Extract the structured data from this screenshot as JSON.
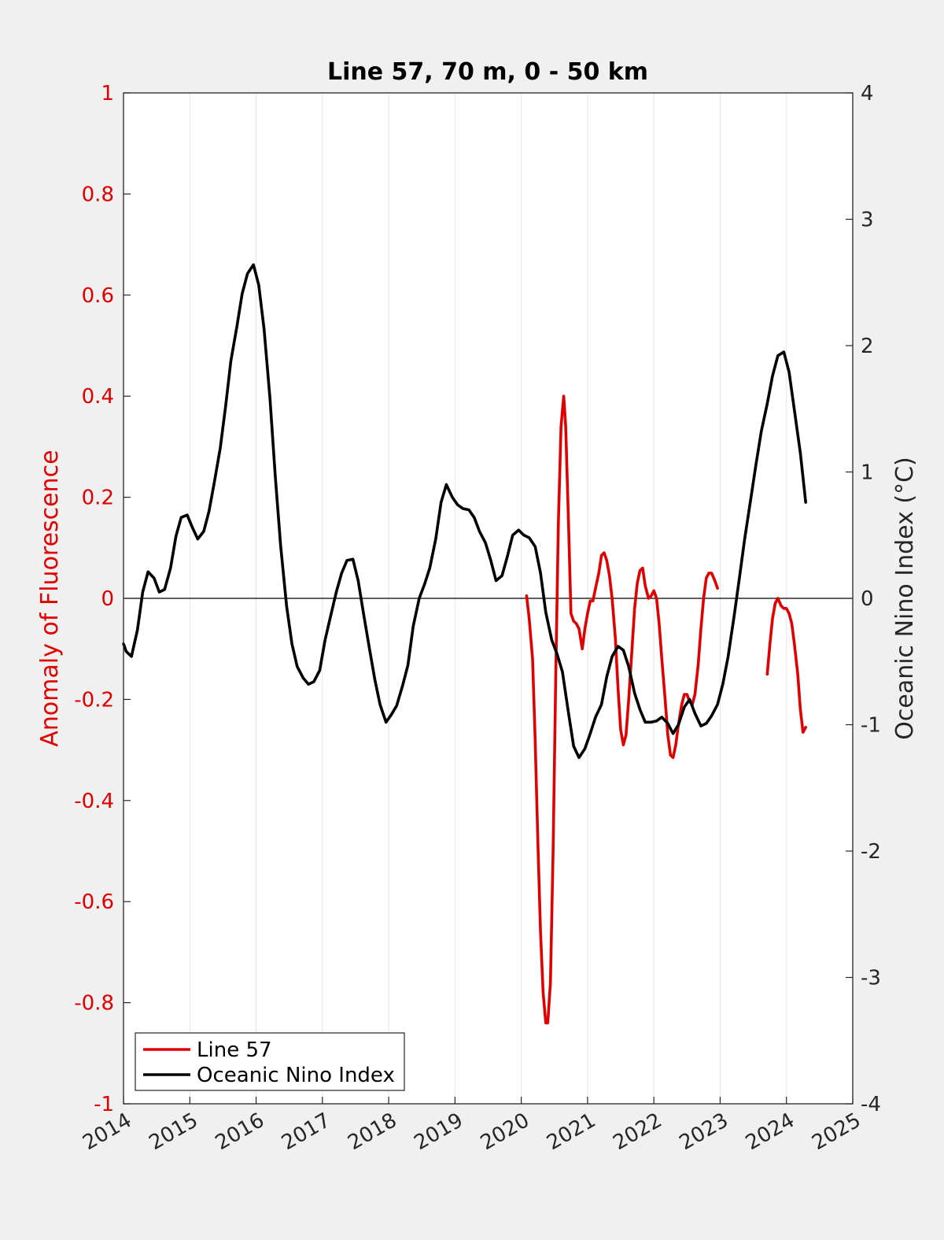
{
  "chart_data": {
    "type": "line",
    "title": "Line 57, 70 m, 0 - 50 km",
    "xlabel": "",
    "ylabel_left": "Anomaly of Fluorescence",
    "ylabel_right": "Oceanic Nino Index (°C)",
    "xlim": [
      2014,
      2025
    ],
    "ylim_left": [
      -1,
      1
    ],
    "ylim_right": [
      -4,
      4
    ],
    "x_ticks": [
      "2014",
      "2015",
      "2016",
      "2017",
      "2018",
      "2019",
      "2020",
      "2021",
      "2022",
      "2023",
      "2024",
      "2025"
    ],
    "y_left_ticks": [
      "-1",
      "-0.8",
      "-0.6",
      "-0.4",
      "-0.2",
      "0",
      "0.2",
      "0.4",
      "0.6",
      "0.8",
      "1"
    ],
    "y_right_ticks": [
      "-4",
      "-3",
      "-2",
      "-1",
      "0",
      "1",
      "2",
      "3",
      "4"
    ],
    "grid": "vertical",
    "zero_line": true,
    "legend": {
      "position": "bottom-left",
      "entries": [
        "Line 57",
        "Oceanic Nino Index"
      ]
    },
    "colors": {
      "line57": "#e00000",
      "oni": "#000000",
      "left_axis": "#e00000"
    },
    "series": [
      {
        "name": "Line 57",
        "axis": "left",
        "segments": [
          [
            [
              2020.08,
              0.005
            ],
            [
              2020.12,
              -0.04
            ],
            [
              2020.17,
              -0.12
            ],
            [
              2020.21,
              -0.28
            ],
            [
              2020.25,
              -0.48
            ],
            [
              2020.29,
              -0.66
            ],
            [
              2020.33,
              -0.78
            ],
            [
              2020.37,
              -0.84
            ],
            [
              2020.4,
              -0.84
            ],
            [
              2020.44,
              -0.76
            ],
            [
              2020.48,
              -0.5
            ],
            [
              2020.52,
              -0.15
            ],
            [
              2020.56,
              0.15
            ],
            [
              2020.6,
              0.34
            ],
            [
              2020.64,
              0.4
            ],
            [
              2020.67,
              0.34
            ],
            [
              2020.71,
              0.16
            ],
            [
              2020.75,
              -0.03
            ],
            [
              2020.79,
              -0.045
            ],
            [
              2020.83,
              -0.05
            ],
            [
              2020.87,
              -0.06
            ],
            [
              2020.92,
              -0.1
            ],
            [
              2020.96,
              -0.06
            ],
            [
              2021.0,
              -0.03
            ],
            [
              2021.04,
              -0.005
            ],
            [
              2021.08,
              -0.005
            ],
            [
              2021.12,
              0.02
            ],
            [
              2021.17,
              0.05
            ],
            [
              2021.21,
              0.085
            ],
            [
              2021.25,
              0.09
            ],
            [
              2021.29,
              0.075
            ],
            [
              2021.33,
              0.045
            ],
            [
              2021.37,
              0.0
            ],
            [
              2021.42,
              -0.08
            ],
            [
              2021.46,
              -0.18
            ],
            [
              2021.5,
              -0.26
            ],
            [
              2021.54,
              -0.29
            ],
            [
              2021.58,
              -0.27
            ],
            [
              2021.62,
              -0.2
            ],
            [
              2021.67,
              -0.1
            ],
            [
              2021.71,
              -0.02
            ],
            [
              2021.75,
              0.03
            ],
            [
              2021.79,
              0.055
            ],
            [
              2021.83,
              0.06
            ],
            [
              2021.87,
              0.025
            ],
            [
              2021.92,
              0.0
            ],
            [
              2021.96,
              0.005
            ],
            [
              2022.0,
              0.015
            ],
            [
              2022.04,
              0.0
            ],
            [
              2022.08,
              -0.05
            ],
            [
              2022.12,
              -0.12
            ],
            [
              2022.17,
              -0.2
            ],
            [
              2022.21,
              -0.27
            ],
            [
              2022.25,
              -0.31
            ],
            [
              2022.29,
              -0.315
            ],
            [
              2022.33,
              -0.29
            ],
            [
              2022.37,
              -0.25
            ],
            [
              2022.42,
              -0.21
            ],
            [
              2022.46,
              -0.19
            ],
            [
              2022.5,
              -0.19
            ],
            [
              2022.54,
              -0.205
            ],
            [
              2022.58,
              -0.21
            ],
            [
              2022.62,
              -0.19
            ],
            [
              2022.67,
              -0.13
            ],
            [
              2022.71,
              -0.06
            ],
            [
              2022.75,
              0.0
            ],
            [
              2022.79,
              0.04
            ],
            [
              2022.83,
              0.05
            ],
            [
              2022.87,
              0.05
            ],
            [
              2022.92,
              0.035
            ],
            [
              2022.96,
              0.02
            ]
          ],
          [
            [
              2023.71,
              -0.15
            ],
            [
              2023.75,
              -0.09
            ],
            [
              2023.79,
              -0.04
            ],
            [
              2023.83,
              -0.01
            ],
            [
              2023.87,
              0.0
            ],
            [
              2023.92,
              -0.015
            ],
            [
              2023.96,
              -0.02
            ],
            [
              2024.0,
              -0.02
            ],
            [
              2024.04,
              -0.03
            ],
            [
              2024.08,
              -0.05
            ],
            [
              2024.12,
              -0.09
            ],
            [
              2024.17,
              -0.15
            ],
            [
              2024.21,
              -0.22
            ],
            [
              2024.25,
              -0.265
            ],
            [
              2024.29,
              -0.255
            ]
          ]
        ]
      },
      {
        "name": "Oceanic Nino Index",
        "axis": "right",
        "values": [
          [
            2014.0,
            -0.36
          ],
          [
            2014.04,
            -0.42
          ],
          [
            2014.12,
            -0.46
          ],
          [
            2014.21,
            -0.25
          ],
          [
            2014.29,
            0.05
          ],
          [
            2014.37,
            0.21
          ],
          [
            2014.46,
            0.16
          ],
          [
            2014.54,
            0.05
          ],
          [
            2014.62,
            0.07
          ],
          [
            2014.71,
            0.24
          ],
          [
            2014.79,
            0.49
          ],
          [
            2014.87,
            0.64
          ],
          [
            2014.96,
            0.66
          ],
          [
            2015.04,
            0.56
          ],
          [
            2015.12,
            0.47
          ],
          [
            2015.21,
            0.53
          ],
          [
            2015.29,
            0.69
          ],
          [
            2015.37,
            0.92
          ],
          [
            2015.46,
            1.19
          ],
          [
            2015.54,
            1.52
          ],
          [
            2015.62,
            1.88
          ],
          [
            2015.71,
            2.15
          ],
          [
            2015.79,
            2.41
          ],
          [
            2015.87,
            2.57
          ],
          [
            2015.96,
            2.64
          ],
          [
            2016.04,
            2.48
          ],
          [
            2016.12,
            2.13
          ],
          [
            2016.21,
            1.58
          ],
          [
            2016.29,
            0.96
          ],
          [
            2016.37,
            0.42
          ],
          [
            2016.46,
            -0.06
          ],
          [
            2016.54,
            -0.36
          ],
          [
            2016.62,
            -0.54
          ],
          [
            2016.71,
            -0.63
          ],
          [
            2016.79,
            -0.68
          ],
          [
            2016.87,
            -0.66
          ],
          [
            2016.96,
            -0.57
          ],
          [
            2017.04,
            -0.33
          ],
          [
            2017.12,
            -0.15
          ],
          [
            2017.21,
            0.05
          ],
          [
            2017.29,
            0.2
          ],
          [
            2017.37,
            0.3
          ],
          [
            2017.46,
            0.31
          ],
          [
            2017.54,
            0.14
          ],
          [
            2017.62,
            -0.12
          ],
          [
            2017.71,
            -0.4
          ],
          [
            2017.79,
            -0.64
          ],
          [
            2017.87,
            -0.84
          ],
          [
            2017.96,
            -0.98
          ],
          [
            2018.04,
            -0.92
          ],
          [
            2018.12,
            -0.85
          ],
          [
            2018.21,
            -0.69
          ],
          [
            2018.29,
            -0.53
          ],
          [
            2018.37,
            -0.22
          ],
          [
            2018.46,
            0.0
          ],
          [
            2018.54,
            0.11
          ],
          [
            2018.62,
            0.24
          ],
          [
            2018.71,
            0.47
          ],
          [
            2018.79,
            0.76
          ],
          [
            2018.87,
            0.9
          ],
          [
            2018.96,
            0.8
          ],
          [
            2019.04,
            0.74
          ],
          [
            2019.12,
            0.71
          ],
          [
            2019.21,
            0.7
          ],
          [
            2019.29,
            0.64
          ],
          [
            2019.37,
            0.53
          ],
          [
            2019.46,
            0.44
          ],
          [
            2019.54,
            0.3
          ],
          [
            2019.62,
            0.14
          ],
          [
            2019.71,
            0.18
          ],
          [
            2019.79,
            0.33
          ],
          [
            2019.87,
            0.5
          ],
          [
            2019.96,
            0.54
          ],
          [
            2020.04,
            0.5
          ],
          [
            2020.12,
            0.48
          ],
          [
            2020.21,
            0.41
          ],
          [
            2020.29,
            0.2
          ],
          [
            2020.37,
            -0.11
          ],
          [
            2020.46,
            -0.33
          ],
          [
            2020.54,
            -0.44
          ],
          [
            2020.62,
            -0.58
          ],
          [
            2020.71,
            -0.9
          ],
          [
            2020.79,
            -1.17
          ],
          [
            2020.87,
            -1.26
          ],
          [
            2020.96,
            -1.19
          ],
          [
            2021.04,
            -1.07
          ],
          [
            2021.12,
            -0.94
          ],
          [
            2021.21,
            -0.84
          ],
          [
            2021.29,
            -0.62
          ],
          [
            2021.37,
            -0.46
          ],
          [
            2021.46,
            -0.38
          ],
          [
            2021.54,
            -0.41
          ],
          [
            2021.62,
            -0.54
          ],
          [
            2021.71,
            -0.75
          ],
          [
            2021.79,
            -0.88
          ],
          [
            2021.87,
            -0.98
          ],
          [
            2021.96,
            -0.98
          ],
          [
            2022.04,
            -0.97
          ],
          [
            2022.12,
            -0.94
          ],
          [
            2022.21,
            -0.99
          ],
          [
            2022.29,
            -1.07
          ],
          [
            2022.37,
            -1.0
          ],
          [
            2022.46,
            -0.86
          ],
          [
            2022.54,
            -0.8
          ],
          [
            2022.62,
            -0.91
          ],
          [
            2022.71,
            -1.01
          ],
          [
            2022.79,
            -0.99
          ],
          [
            2022.87,
            -0.93
          ],
          [
            2022.96,
            -0.84
          ],
          [
            2023.04,
            -0.68
          ],
          [
            2023.12,
            -0.46
          ],
          [
            2023.21,
            -0.14
          ],
          [
            2023.29,
            0.16
          ],
          [
            2023.37,
            0.47
          ],
          [
            2023.46,
            0.78
          ],
          [
            2023.54,
            1.06
          ],
          [
            2023.62,
            1.32
          ],
          [
            2023.71,
            1.54
          ],
          [
            2023.79,
            1.76
          ],
          [
            2023.87,
            1.92
          ],
          [
            2023.96,
            1.95
          ],
          [
            2024.04,
            1.79
          ],
          [
            2024.12,
            1.49
          ],
          [
            2024.21,
            1.15
          ],
          [
            2024.29,
            0.76
          ]
        ]
      }
    ]
  }
}
